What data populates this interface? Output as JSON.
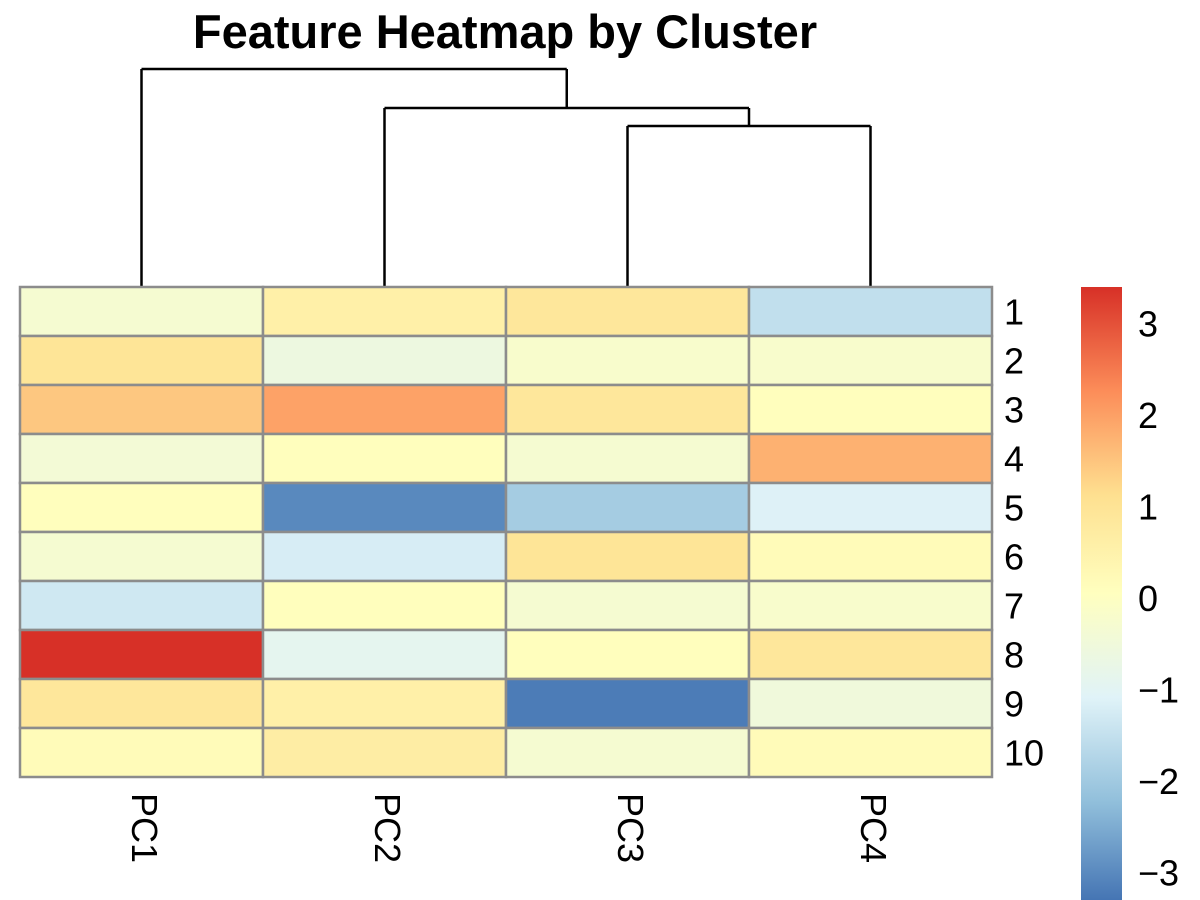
{
  "chart_data": {
    "type": "heatmap",
    "title": "Feature Heatmap by Cluster",
    "columns": [
      "PC1",
      "PC2",
      "PC3",
      "PC4"
    ],
    "rows": [
      "1",
      "2",
      "3",
      "4",
      "5",
      "6",
      "7",
      "8",
      "9",
      "10"
    ],
    "values": [
      [
        -0.3,
        0.6,
        0.9,
        -1.5
      ],
      [
        1.0,
        -0.6,
        -0.2,
        -0.2
      ],
      [
        1.5,
        2.0,
        0.9,
        0.1
      ],
      [
        -0.4,
        0.1,
        -0.3,
        1.8
      ],
      [
        0.1,
        -3.0,
        -1.9,
        -1.1
      ],
      [
        -0.3,
        -1.2,
        1.0,
        0.2
      ],
      [
        -1.3,
        0.1,
        -0.3,
        -0.2
      ],
      [
        3.4,
        -0.9,
        0.1,
        0.9
      ],
      [
        0.9,
        0.6,
        -3.2,
        -0.5
      ],
      [
        0.2,
        0.7,
        -0.3,
        0.2
      ]
    ],
    "color_scale": {
      "range": [
        -3.3,
        3.4
      ],
      "ticks": [
        3,
        2,
        1,
        0,
        -1,
        -2,
        -3
      ],
      "colors": [
        "#4575b4",
        "#91bfdb",
        "#e0f3f8",
        "#ffffbf",
        "#fee090",
        "#fc8d59",
        "#d73027"
      ]
    },
    "column_dendrogram": {
      "merges": [
        [
          3,
          4
        ],
        [
          2,
          "PC3-PC4"
        ],
        [
          1,
          "PC2-PC3-PC4"
        ]
      ]
    },
    "legend_placement": "right",
    "grid": false
  }
}
